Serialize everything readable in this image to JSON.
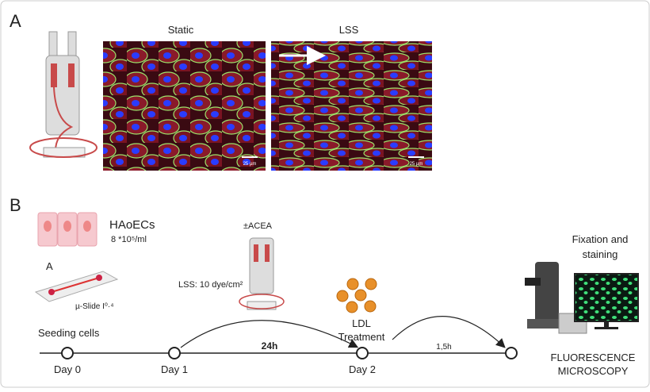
{
  "panel_a": {
    "label": "A",
    "static_title": "Static",
    "lss_title": "LSS",
    "scale_bar": "25 µm"
  },
  "panel_b": {
    "label": "B",
    "cells": {
      "name": "HAoECs",
      "density": "8 *10⁵/ml"
    },
    "slide": {
      "label": "A",
      "name": "µ-Slide I⁰·⁴"
    },
    "treatment": "±ACEA",
    "shear": "LSS: 10 dye/cm²",
    "seeding": "Seeding cells",
    "days": [
      "Day 0",
      "Day 1",
      "Day 2"
    ],
    "interval_1": "24h",
    "interval_2": "1,5h",
    "ldl": [
      "LDL",
      "Treatment"
    ],
    "fixation": [
      "Fixation and",
      "staining"
    ],
    "microscopy": [
      "FLUORESCENCE",
      "MICROSCOPY"
    ]
  }
}
